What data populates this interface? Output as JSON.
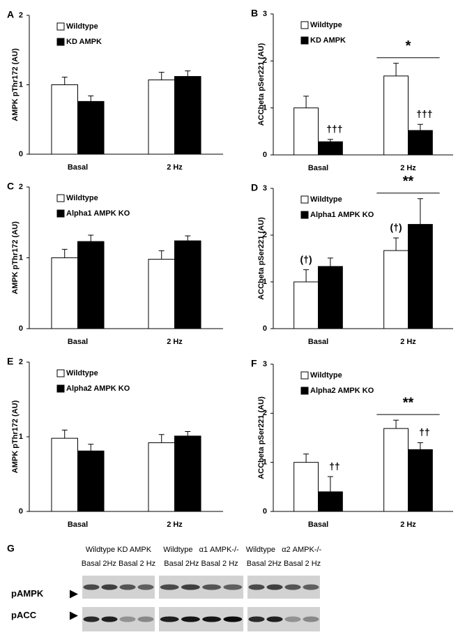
{
  "chart_data": [
    {
      "type": "bar",
      "panel": "A",
      "ylabel": "AMPK pThr172 (AU)",
      "categories": [
        "Basal",
        "2 Hz"
      ],
      "ylim": [
        0,
        2
      ],
      "yticks": [
        0,
        1,
        2
      ],
      "series": [
        {
          "name": "Wildtype",
          "color": "#ffffff",
          "values": [
            1.0,
            1.07
          ],
          "errors": [
            0.11,
            0.11
          ]
        },
        {
          "name": "KD AMPK",
          "color": "#000000",
          "values": [
            0.76,
            1.12
          ],
          "errors": [
            0.08,
            0.08
          ]
        }
      ]
    },
    {
      "type": "bar",
      "panel": "B",
      "ylabel": "ACCbeta pSer221 (AU)",
      "categories": [
        "Basal",
        "2 Hz"
      ],
      "ylim": [
        0,
        3
      ],
      "yticks": [
        0,
        1,
        2,
        3
      ],
      "significance": "*",
      "series": [
        {
          "name": "Wildtype",
          "color": "#ffffff",
          "values": [
            1.0,
            1.68
          ],
          "errors": [
            0.25,
            0.27
          ]
        },
        {
          "name": "KD AMPK",
          "color": "#000000",
          "values": [
            0.28,
            0.52
          ],
          "errors": [
            0.05,
            0.13
          ],
          "annotations": [
            "†††",
            "†††"
          ]
        }
      ]
    },
    {
      "type": "bar",
      "panel": "C",
      "ylabel": "AMPK pThr172 (AU)",
      "categories": [
        "Basal",
        "2 Hz"
      ],
      "ylim": [
        0,
        2
      ],
      "yticks": [
        0,
        1,
        2
      ],
      "series": [
        {
          "name": "Wildtype",
          "color": "#ffffff",
          "values": [
            1.0,
            0.98
          ],
          "errors": [
            0.12,
            0.12
          ]
        },
        {
          "name": "Alpha1 AMPK KO",
          "color": "#000000",
          "values": [
            1.23,
            1.24
          ],
          "errors": [
            0.09,
            0.07
          ]
        }
      ]
    },
    {
      "type": "bar",
      "panel": "D",
      "ylabel": "ACCbeta pSer221 (AU)",
      "categories": [
        "Basal",
        "2 Hz"
      ],
      "ylim": [
        0,
        3
      ],
      "yticks": [
        0,
        1,
        2,
        3
      ],
      "significance": "**",
      "series": [
        {
          "name": "Wildtype",
          "color": "#ffffff",
          "values": [
            1.0,
            1.67
          ],
          "errors": [
            0.26,
            0.27
          ],
          "annotations": [
            "(†)",
            "(†)"
          ]
        },
        {
          "name": "Alpha1 AMPK KO",
          "color": "#000000",
          "values": [
            1.33,
            2.23
          ],
          "errors": [
            0.18,
            0.55
          ]
        }
      ]
    },
    {
      "type": "bar",
      "panel": "E",
      "ylabel": "AMPK pThr172 (AU)",
      "categories": [
        "Basal",
        "2 Hz"
      ],
      "ylim": [
        0,
        2
      ],
      "yticks": [
        0,
        1,
        2
      ],
      "series": [
        {
          "name": "Wildtype",
          "color": "#ffffff",
          "values": [
            0.98,
            0.92
          ],
          "errors": [
            0.11,
            0.11
          ]
        },
        {
          "name": "Alpha2 AMPK KO",
          "color": "#000000",
          "values": [
            0.81,
            1.01
          ],
          "errors": [
            0.09,
            0.06
          ]
        }
      ]
    },
    {
      "type": "bar",
      "panel": "F",
      "ylabel": "ACCbeta pSer221 (AU)",
      "categories": [
        "Basal",
        "2 Hz"
      ],
      "ylim": [
        0,
        3
      ],
      "yticks": [
        0,
        1,
        2,
        3
      ],
      "significance": "**",
      "series": [
        {
          "name": "Wildtype",
          "color": "#ffffff",
          "values": [
            1.0,
            1.69
          ],
          "errors": [
            0.17,
            0.17
          ]
        },
        {
          "name": "Alpha2 AMPK KO",
          "color": "#000000",
          "values": [
            0.4,
            1.26
          ],
          "errors": [
            0.31,
            0.14
          ],
          "annotations": [
            "††",
            "††"
          ]
        }
      ]
    }
  ],
  "blot": {
    "panel": "G",
    "rows": [
      "pAMPK",
      "pACC"
    ],
    "groups": [
      {
        "label": "Wildtype KD AMPK",
        "lanes": "Basal 2Hz Basal 2 Hz"
      },
      {
        "label": "Wildtype   α1 AMPK-/-",
        "lanes": "Basal 2Hz Basal 2 Hz"
      },
      {
        "label": "Wildtype   α2 AMPK-/-",
        "lanes": "Basal 2Hz Basal 2 Hz"
      }
    ]
  }
}
